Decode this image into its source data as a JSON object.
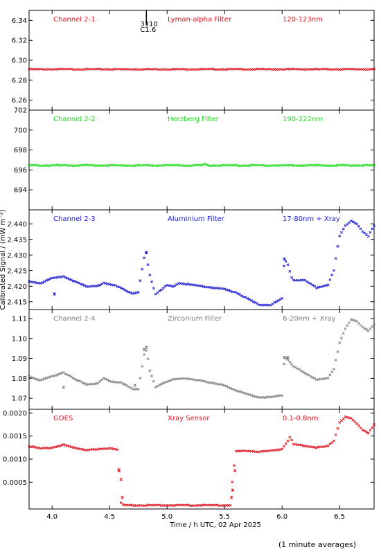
{
  "chart_data": {
    "type": "scatter",
    "xlabel": "Time / h UTC, 02 Apr 2025",
    "ylabel": "Calibrated Signal / (mW m⁻²)",
    "xlim": [
      3.8,
      6.8
    ],
    "x_ticks": [
      "4.0",
      "4.5",
      "5.0",
      "5.5",
      "6.0",
      "6.5"
    ],
    "footnote": "(1 minute averages)",
    "flare_marker": {
      "x": 4.82,
      "labels": [
        "3310",
        "C1.6"
      ]
    },
    "panels": [
      {
        "channel": "Channel 2-1",
        "filter": "Lyman-alpha Filter",
        "band": "120-123nm",
        "color": "#e8111c",
        "ylim": [
          6.25,
          6.35
        ],
        "y_ticks": [
          "6.26",
          "6.28",
          "6.30",
          "6.32",
          "6.34"
        ],
        "trend": [
          [
            3.8,
            6.291
          ],
          [
            6.8,
            6.291
          ]
        ],
        "outliers": []
      },
      {
        "channel": "Channel 2-2",
        "filter": "Herzberg Filter",
        "band": "190-222nm",
        "color": "#19e017",
        "ylim": [
          692.0,
          702.0
        ],
        "y_ticks": [
          "694",
          "696",
          "698",
          "700",
          "702"
        ],
        "trend": [
          [
            3.8,
            696.45
          ],
          [
            5.3,
            696.45
          ],
          [
            5.33,
            696.6
          ],
          [
            5.36,
            696.45
          ],
          [
            6.8,
            696.45
          ]
        ],
        "outliers": []
      },
      {
        "channel": "Channel 2-3",
        "filter": "Aluminium Filter",
        "band": "17-80nm + Xray",
        "color": "#1a1adc",
        "ylim": [
          2.4125,
          2.4445
        ],
        "y_ticks": [
          "2.415",
          "2.420",
          "2.425",
          "2.430",
          "2.435",
          "2.440"
        ],
        "trend": [
          [
            3.8,
            2.4215
          ],
          [
            3.9,
            2.421
          ],
          [
            4.0,
            2.4225
          ],
          [
            4.1,
            2.4232
          ],
          [
            4.2,
            2.4215
          ],
          [
            4.3,
            2.4198
          ],
          [
            4.4,
            2.4202
          ],
          [
            4.45,
            2.421
          ],
          [
            4.5,
            2.4205
          ],
          [
            4.55,
            2.4202
          ],
          [
            4.6,
            2.4195
          ],
          [
            4.7,
            2.4175
          ],
          [
            4.75,
            2.418
          ],
          [
            4.8,
            2.429
          ],
          [
            4.82,
            2.431
          ],
          [
            4.84,
            2.425
          ],
          [
            4.87,
            2.421
          ],
          [
            4.9,
            2.4175
          ],
          [
            4.95,
            2.4188
          ],
          [
            5.0,
            2.4203
          ],
          [
            5.05,
            2.4198
          ],
          [
            5.1,
            2.421
          ],
          [
            5.2,
            2.4205
          ],
          [
            5.3,
            2.42
          ],
          [
            5.4,
            2.4195
          ],
          [
            5.5,
            2.419
          ],
          [
            5.6,
            2.418
          ],
          [
            5.7,
            2.416
          ],
          [
            5.8,
            2.414
          ],
          [
            5.9,
            2.414
          ],
          [
            6.0,
            2.416
          ],
          [
            6.02,
            2.4285
          ],
          [
            6.05,
            2.427
          ],
          [
            6.08,
            2.423
          ],
          [
            6.1,
            2.422
          ],
          [
            6.2,
            2.4218
          ],
          [
            6.3,
            2.4195
          ],
          [
            6.4,
            2.4205
          ],
          [
            6.45,
            2.425
          ],
          [
            6.48,
            2.432
          ],
          [
            6.5,
            2.436
          ],
          [
            6.55,
            2.4395
          ],
          [
            6.6,
            2.441
          ],
          [
            6.65,
            2.44
          ],
          [
            6.7,
            2.4375
          ],
          [
            6.75,
            2.436
          ],
          [
            6.8,
            2.4395
          ]
        ],
        "outliers": [
          [
            4.02,
            2.4175
          ],
          [
            4.82,
            2.4308
          ],
          [
            6.02,
            2.4287
          ]
        ]
      },
      {
        "channel": "Channel 2-4",
        "filter": "Zirconium Filter",
        "band": "6-20nm + Xray",
        "color": "#808080",
        "ylim": [
          1.0645,
          1.1145
        ],
        "y_ticks": [
          "1.07",
          "1.08",
          "1.09",
          "1.10",
          "1.11"
        ],
        "trend": [
          [
            3.8,
            1.081
          ],
          [
            3.9,
            1.079
          ],
          [
            4.0,
            1.081
          ],
          [
            4.1,
            1.083
          ],
          [
            4.2,
            1.0795
          ],
          [
            4.3,
            1.077
          ],
          [
            4.4,
            1.0775
          ],
          [
            4.45,
            1.08
          ],
          [
            4.5,
            1.0785
          ],
          [
            4.6,
            1.078
          ],
          [
            4.7,
            1.0745
          ],
          [
            4.75,
            1.0745
          ],
          [
            4.8,
            1.092
          ],
          [
            4.82,
            1.0945
          ],
          [
            4.85,
            1.084
          ],
          [
            4.9,
            1.0755
          ],
          [
            5.0,
            1.0785
          ],
          [
            5.05,
            1.0795
          ],
          [
            5.1,
            1.08
          ],
          [
            5.3,
            1.079
          ],
          [
            5.4,
            1.0775
          ],
          [
            5.5,
            1.0765
          ],
          [
            5.6,
            1.074
          ],
          [
            5.7,
            1.072
          ],
          [
            5.8,
            1.0705
          ],
          [
            5.9,
            1.0705
          ],
          [
            6.0,
            1.0715
          ],
          [
            6.02,
            1.0905
          ],
          [
            6.05,
            1.0895
          ],
          [
            6.1,
            1.086
          ],
          [
            6.2,
            1.0825
          ],
          [
            6.3,
            1.0795
          ],
          [
            6.4,
            1.08
          ],
          [
            6.45,
            1.0845
          ],
          [
            6.5,
            1.098
          ],
          [
            6.55,
            1.105
          ],
          [
            6.6,
            1.1095
          ],
          [
            6.65,
            1.1085
          ],
          [
            6.7,
            1.1055
          ],
          [
            6.75,
            1.104
          ],
          [
            6.8,
            1.107
          ]
        ],
        "outliers": [
          [
            4.1,
            1.0755
          ],
          [
            4.72,
            1.0765
          ],
          [
            4.8,
            1.0945
          ],
          [
            4.82,
            1.0955
          ],
          [
            6.02,
            1.0905
          ],
          [
            6.05,
            1.0905
          ]
        ]
      },
      {
        "channel": "GOES",
        "filter": "Xray Sensor",
        "band": "0.1-0.8nm",
        "color": "#e8111c",
        "ylim": [
          -8e-05,
          0.00208
        ],
        "y_ticks": [
          "0.0005",
          "0.0010",
          "0.0015",
          "0.0020"
        ],
        "trend": [
          [
            3.8,
            0.00128
          ],
          [
            3.9,
            0.00123
          ],
          [
            4.0,
            0.00125
          ],
          [
            4.1,
            0.00131
          ],
          [
            4.2,
            0.00124
          ],
          [
            4.3,
            0.0012
          ],
          [
            4.4,
            0.00121
          ],
          [
            4.5,
            0.00124
          ],
          [
            4.55,
            0.00122
          ],
          [
            4.57,
            0.00121
          ],
          [
            4.59,
            0.0005
          ],
          [
            4.6,
            5e-05
          ],
          [
            4.62,
            0.0
          ],
          [
            5.55,
            0.0
          ],
          [
            5.57,
            0.0006
          ],
          [
            5.6,
            0.00117
          ],
          [
            5.7,
            0.00118
          ],
          [
            5.8,
            0.00116
          ],
          [
            5.9,
            0.00118
          ],
          [
            6.0,
            0.00122
          ],
          [
            6.05,
            0.0014
          ],
          [
            6.07,
            0.00148
          ],
          [
            6.1,
            0.00132
          ],
          [
            6.2,
            0.00129
          ],
          [
            6.3,
            0.00125
          ],
          [
            6.4,
            0.00128
          ],
          [
            6.45,
            0.0014
          ],
          [
            6.5,
            0.0018
          ],
          [
            6.55,
            0.00192
          ],
          [
            6.6,
            0.00188
          ],
          [
            6.7,
            0.00164
          ],
          [
            6.75,
            0.00157
          ],
          [
            6.8,
            0.00175
          ]
        ],
        "outliers": [
          [
            4.58,
            0.00077
          ],
          [
            4.6,
            0.00056
          ],
          [
            4.61,
            0.00017
          ],
          [
            5.56,
            0.00017
          ],
          [
            5.57,
            0.00033
          ],
          [
            5.59,
            0.00075
          ]
        ]
      }
    ]
  }
}
